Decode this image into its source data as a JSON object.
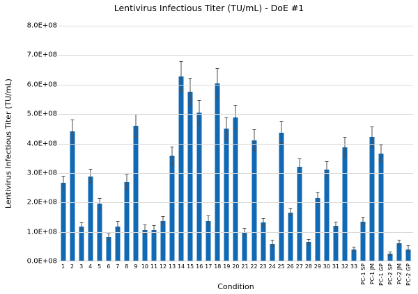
{
  "chart_data": {
    "type": "bar",
    "title": "Lentivirus Infectious Titer (TU/mL) - DoE #1",
    "xlabel": "Condition",
    "ylabel": "Lentivirus Infectious Titer (TU/mL)",
    "value_unit": "TU/mL",
    "value_scale": 100000000,
    "ylim_1e8": [
      0,
      8
    ],
    "grid": true,
    "legend": false,
    "y_tick_labels": [
      "0.0E+08",
      "1.0E+08",
      "2.0E+08",
      "3.0E+08",
      "4.0E+08",
      "5.0E+08",
      "6.0E+08",
      "7.0E+08",
      "8.0E+08"
    ],
    "categories": [
      "1",
      "2",
      "3",
      "4",
      "5",
      "6",
      "7",
      "8",
      "9",
      "10",
      "11",
      "12",
      "13",
      "14",
      "15",
      "16",
      "17",
      "18",
      "19",
      "20",
      "21",
      "22",
      "23",
      "24",
      "25",
      "26",
      "27",
      "28",
      "29",
      "30",
      "31",
      "32",
      "33",
      "PC-1 SP",
      "PC-1 JM",
      "PC-1 GP",
      "PC-2 SP",
      "PC-2 JM",
      "PC-2 GP"
    ],
    "values_1e8": [
      2.67,
      4.41,
      1.18,
      2.89,
      1.95,
      0.82,
      1.18,
      2.68,
      4.6,
      1.06,
      1.07,
      1.38,
      3.58,
      6.27,
      5.75,
      5.04,
      1.38,
      6.04,
      4.5,
      4.88,
      0.97,
      4.11,
      1.33,
      0.6,
      4.37,
      1.66,
      3.2,
      0.65,
      2.14,
      3.12,
      1.2,
      3.87,
      0.41,
      1.35,
      4.22,
      3.66,
      0.25,
      0.62,
      0.41
    ],
    "errors_1e8": [
      0.2,
      0.37,
      0.12,
      0.23,
      0.18,
      0.1,
      0.16,
      0.25,
      0.38,
      0.17,
      0.13,
      0.14,
      0.3,
      0.51,
      0.46,
      0.41,
      0.15,
      0.5,
      0.36,
      0.4,
      0.13,
      0.35,
      0.12,
      0.11,
      0.37,
      0.13,
      0.28,
      0.09,
      0.2,
      0.26,
      0.12,
      0.32,
      0.07,
      0.13,
      0.34,
      0.28,
      0.05,
      0.08,
      0.1
    ],
    "colors": {
      "bar": "#1169b4",
      "error_bar": "#4d4d4d",
      "gridline": "#d9d9d9",
      "text": "#000000",
      "background": "#ffffff"
    }
  }
}
